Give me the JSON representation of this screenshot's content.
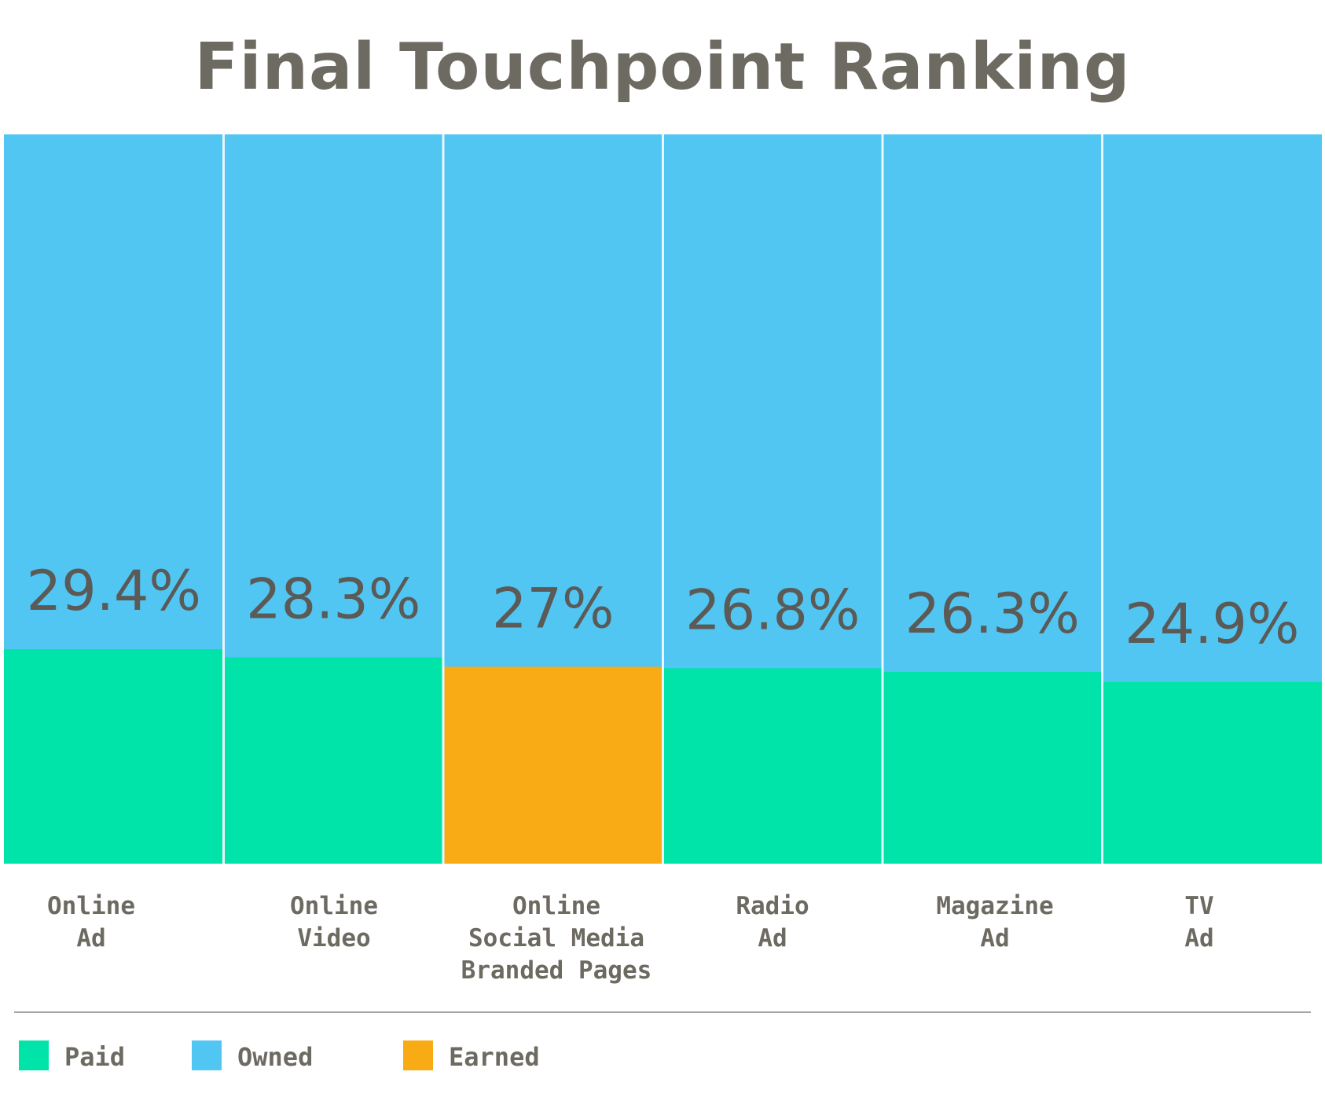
{
  "chart_data": {
    "type": "bar",
    "title": "Final Touchpoint Ranking",
    "categories": [
      [
        "Online",
        "Ad"
      ],
      [
        "Online",
        "Video"
      ],
      [
        "Online",
        "Social Media",
        "Branded Pages"
      ],
      [
        "Radio",
        "Ad"
      ],
      [
        "Magazine",
        "Ad"
      ],
      [
        "TV",
        "Ad"
      ]
    ],
    "values": [
      29.4,
      28.3,
      27,
      26.8,
      26.3,
      24.9
    ],
    "value_labels": [
      "29.4%",
      "28.3%",
      "27%",
      "26.8%",
      "26.3%",
      "24.9%"
    ],
    "segment_types": [
      "Paid",
      "Paid",
      "Earned",
      "Paid",
      "Paid",
      "Paid"
    ],
    "ylim": [
      0,
      100
    ],
    "legend": [
      {
        "label": "Paid",
        "color": "#00e4a9"
      },
      {
        "label": "Owned",
        "color": "#52c6f2"
      },
      {
        "label": "Earned",
        "color": "#f8ab14"
      }
    ],
    "legend_placement": "bottom-left",
    "grid": false
  }
}
